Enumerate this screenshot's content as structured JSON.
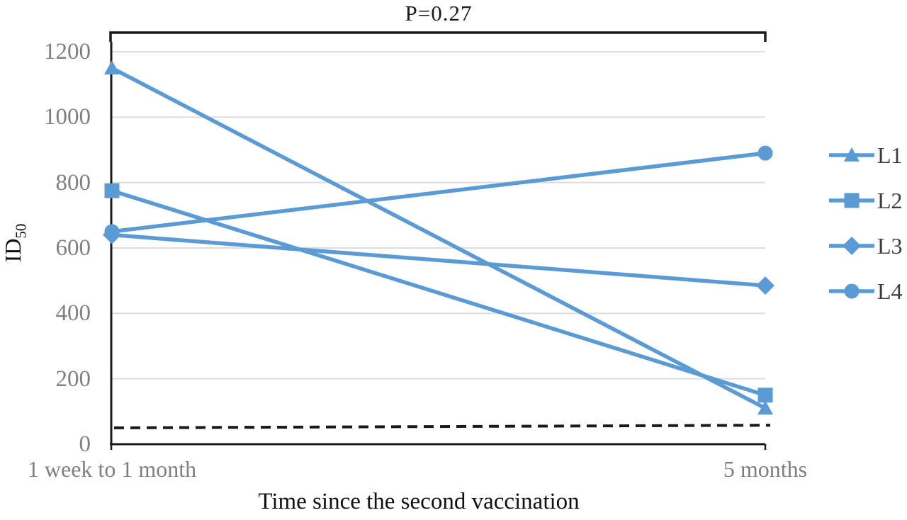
{
  "chart_data": {
    "type": "line",
    "title": "P=0.27",
    "xlabel": "Time since the second vaccination",
    "ylabel": "ID",
    "ylabel_subscript": "50",
    "categories": [
      "1 week to 1 month",
      "5 months"
    ],
    "series": [
      {
        "name": "L1",
        "marker": "triangle",
        "values": [
          1150,
          110
        ]
      },
      {
        "name": "L2",
        "marker": "square",
        "values": [
          775,
          150
        ]
      },
      {
        "name": "L3",
        "marker": "diamond",
        "values": [
          640,
          485
        ]
      },
      {
        "name": "L4",
        "marker": "circle",
        "values": [
          650,
          890
        ]
      }
    ],
    "threshold_dashed_line": {
      "values": [
        50,
        58
      ]
    },
    "ylim": [
      0,
      1200
    ],
    "yticks": [
      0,
      200,
      400,
      600,
      800,
      1000,
      1200
    ],
    "grid": true,
    "legend_position": "right",
    "significance_bracket": {
      "label": "P=0.27",
      "spans": "both categories"
    },
    "colors": {
      "series_line": "#5B9BD5",
      "gridline": "#DCDCDC",
      "axis": "#1a1a1a",
      "tick_label": "#7f7f7f",
      "title_text": "#1a1a1a",
      "legend_text": "#3d3d3d",
      "dashed_line": "#1a1a1a"
    }
  }
}
